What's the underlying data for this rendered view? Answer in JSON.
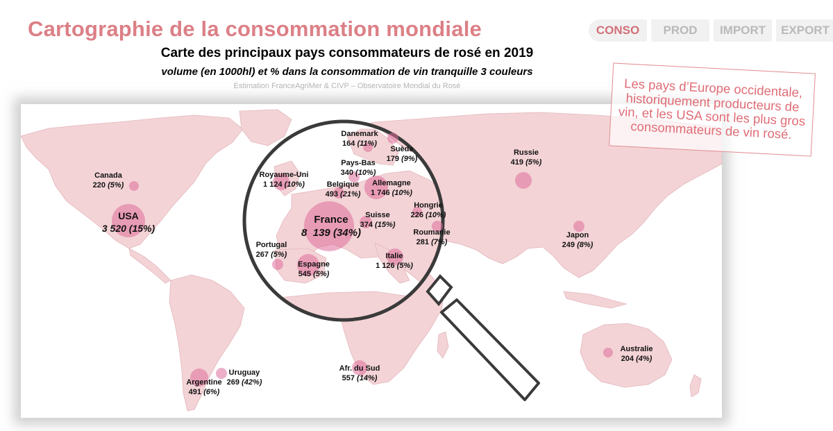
{
  "title": "Cartographie de la consommation mondiale",
  "tabs": [
    {
      "label": "CONSO",
      "active": true
    },
    {
      "label": "PROD",
      "active": false
    },
    {
      "label": "IMPORT",
      "active": false
    },
    {
      "label": "EXPORT",
      "active": false
    }
  ],
  "subtitle": "Carte des principaux pays consommateurs de rosé en 2019",
  "subtitle2": "volume (en 1000hl) et % dans la consommation de vin tranquille 3 couleurs",
  "source": "Estimation FranceAgriMer & CIVP – Observatoire Mondial du Rosé",
  "note": "Les pays d’Europe occidentale, historiquement producteurs de vin, et les USA sont les plus gros consommateurs de vin rosé.",
  "colors": {
    "accent": "#dc7f86",
    "land": "#f3d3d6",
    "bubble": "#df6e9a"
  },
  "world": [
    {
      "name": "Canada",
      "value": "220",
      "pct": "(5%)"
    },
    {
      "name": "USA",
      "value": "3 520",
      "pct": "(15%)"
    },
    {
      "name": "Russie",
      "value": "419",
      "pct": "(5%)"
    },
    {
      "name": "Japon",
      "value": "249",
      "pct": "(8%)"
    },
    {
      "name": "Australie",
      "value": "204",
      "pct": "(4%)"
    },
    {
      "name": "Afr. du Sud",
      "value": "557",
      "pct": "(14%)"
    },
    {
      "name": "Argentine",
      "value": "491",
      "pct": "(6%)"
    },
    {
      "name": "Uruguay",
      "value": "269",
      "pct": "(42%)"
    }
  ],
  "europe": [
    {
      "name": "Danemark",
      "value": "164",
      "pct": "(11%)"
    },
    {
      "name": "Suède",
      "value": "179",
      "pct": "(9%)"
    },
    {
      "name": "Royaume-Uni",
      "value": "1 124",
      "pct": "(10%)"
    },
    {
      "name": "Pays-Bas",
      "value": "340",
      "pct": "(10%)"
    },
    {
      "name": "Belgique",
      "value": "493",
      "pct": "(21%)"
    },
    {
      "name": "Allemagne",
      "value": "1 746",
      "pct": "(10%)"
    },
    {
      "name": "France",
      "value": "8  139",
      "pct": "(34%)"
    },
    {
      "name": "Suisse",
      "value": "374",
      "pct": "(15%)"
    },
    {
      "name": "Hongrie",
      "value": "226",
      "pct": "(10%)"
    },
    {
      "name": "Roumanie",
      "value": "281",
      "pct": "(7%)"
    },
    {
      "name": "Portugal",
      "value": "267",
      "pct": "(5%)"
    },
    {
      "name": "Espagne",
      "value": "545",
      "pct": "(5%)"
    },
    {
      "name": "Italie",
      "value": "1 126",
      "pct": "(5%)"
    }
  ]
}
